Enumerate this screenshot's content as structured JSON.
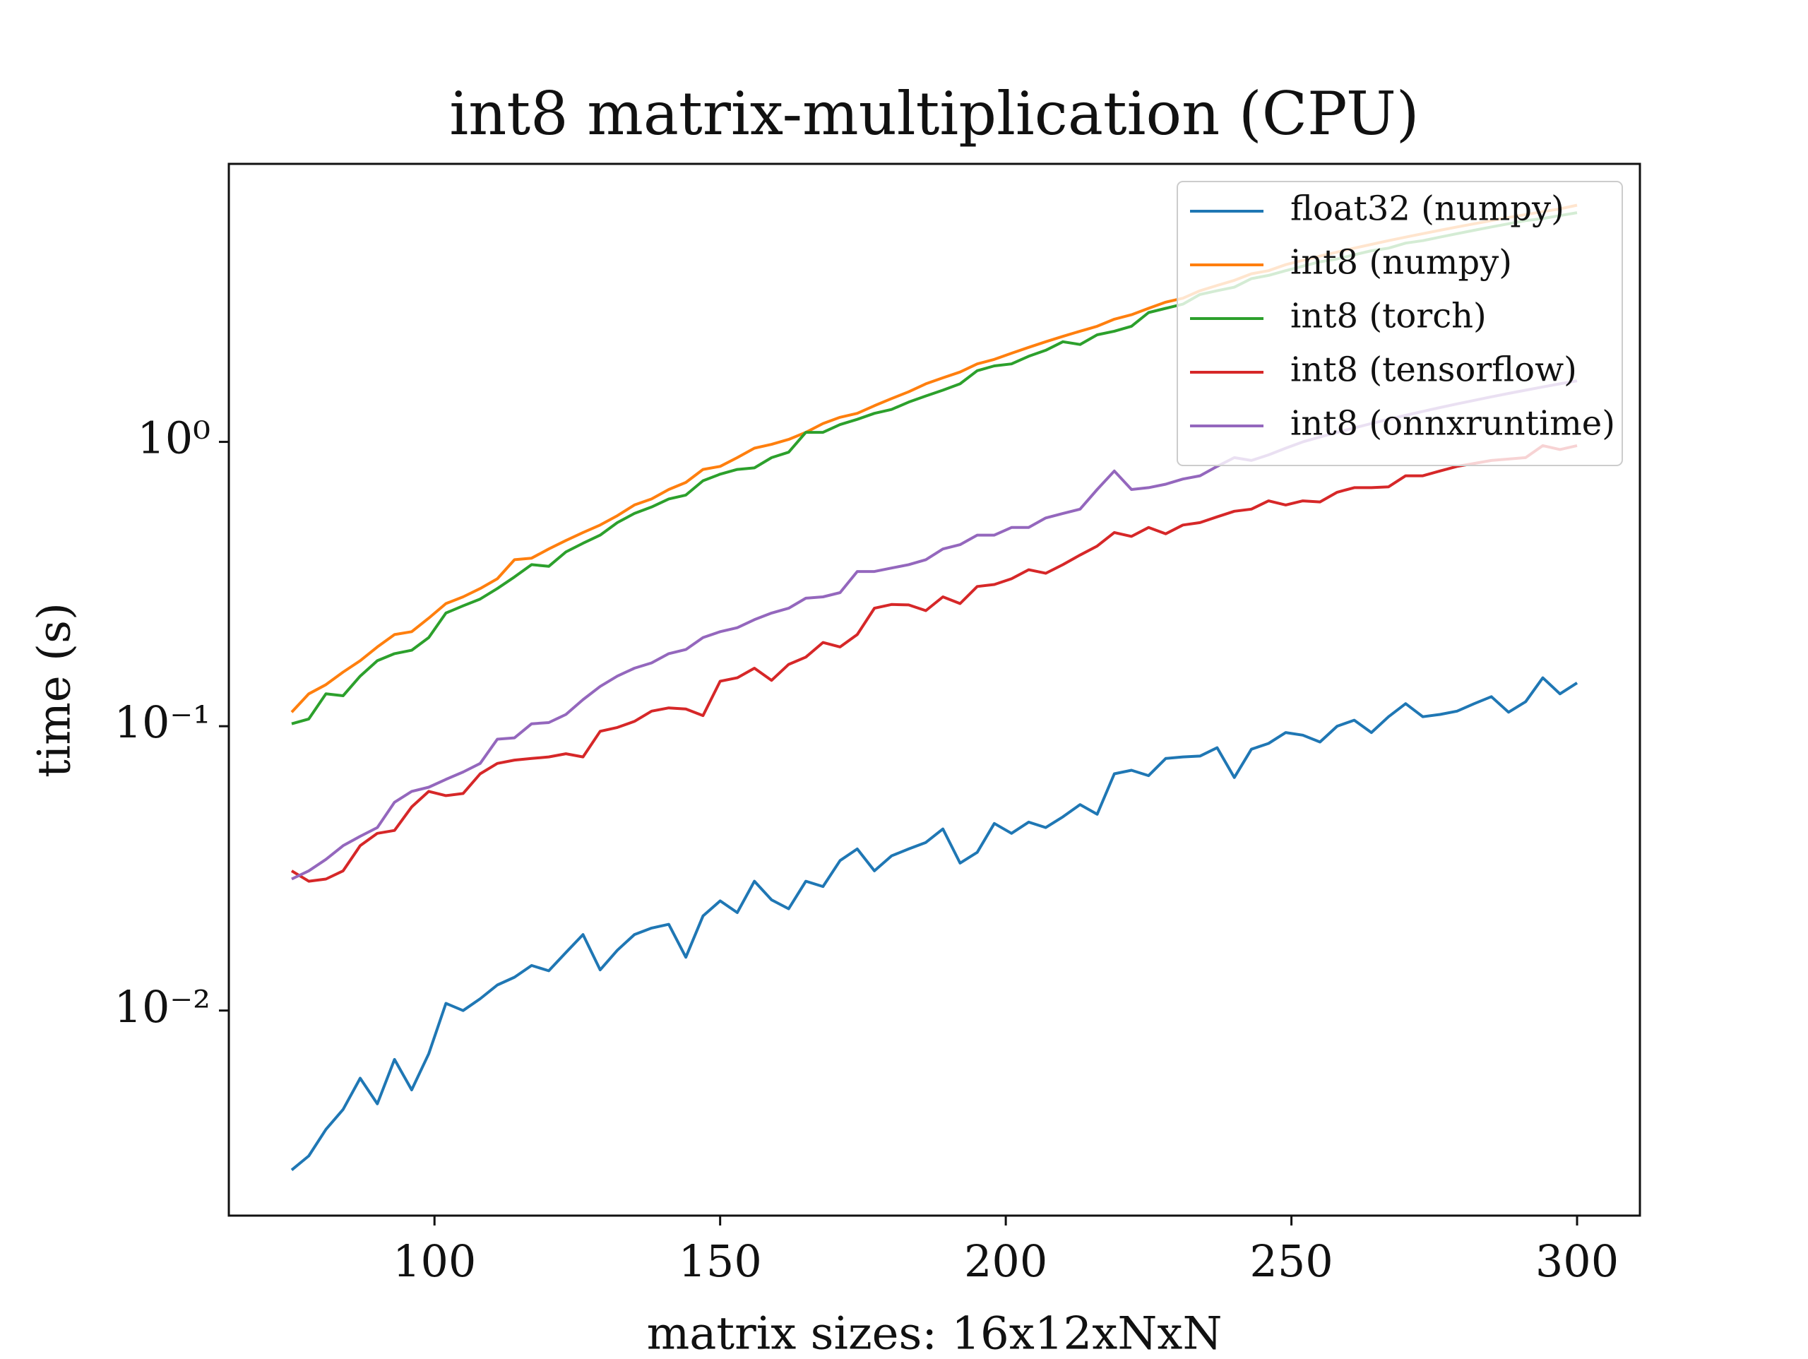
{
  "chart_data": {
    "type": "line",
    "title": "int8 matrix-multiplication (CPU)",
    "xlabel": "matrix sizes: 16x12xNxN",
    "ylabel": "time (s)",
    "yscale": "log",
    "legend": "upper right",
    "xlim": [
      64,
      311
    ],
    "ylim": [
      0.0019,
      9.5
    ],
    "xticks": [
      100,
      150,
      200,
      250,
      300
    ],
    "yticks": [
      {
        "value": 0.01,
        "label": "10⁻²"
      },
      {
        "value": 0.1,
        "label": "10⁻¹"
      },
      {
        "value": 1,
        "label": "10⁰"
      }
    ],
    "x": [
      75,
      78,
      81,
      84,
      87,
      90,
      93,
      96,
      99,
      102,
      105,
      108,
      111,
      114,
      117,
      120,
      123,
      126,
      129,
      132,
      135,
      138,
      141,
      144,
      147,
      150,
      153,
      156,
      159,
      162,
      165,
      168,
      171,
      174,
      177,
      180,
      183,
      186,
      189,
      192,
      195,
      198,
      201,
      204,
      207,
      210,
      213,
      216,
      219,
      222,
      225,
      228,
      231,
      234,
      237,
      240,
      243,
      246,
      249,
      252,
      255,
      258,
      261,
      264,
      267,
      270,
      273,
      276,
      279,
      282,
      285,
      288,
      291,
      294,
      297,
      300
    ],
    "series": [
      {
        "name": "float32 (numpy)",
        "color": "#1f77b4",
        "values": [
          0.00275,
          0.00308,
          0.00382,
          0.00449,
          0.00578,
          0.0047,
          0.00673,
          0.00526,
          0.00705,
          0.0106,
          0.01,
          0.011,
          0.0123,
          0.0131,
          0.0144,
          0.0138,
          0.016,
          0.0185,
          0.0139,
          0.0163,
          0.0185,
          0.0195,
          0.0201,
          0.0154,
          0.0215,
          0.0243,
          0.0221,
          0.0285,
          0.0245,
          0.0228,
          0.0285,
          0.0273,
          0.0337,
          0.037,
          0.031,
          0.035,
          0.037,
          0.039,
          0.0435,
          0.033,
          0.036,
          0.0455,
          0.042,
          0.046,
          0.044,
          0.048,
          0.053,
          0.049,
          0.068,
          0.07,
          0.067,
          0.077,
          0.078,
          0.0785,
          0.084,
          0.066,
          0.083,
          0.087,
          0.095,
          0.093,
          0.088,
          0.1,
          0.105,
          0.095,
          0.108,
          0.12,
          0.108,
          0.11,
          0.113,
          0.12,
          0.127,
          0.112,
          0.122,
          0.148,
          0.13,
          0.142
        ]
      },
      {
        "name": "int8 (numpy)",
        "color": "#ff7f0e",
        "values": [
          0.112,
          0.13,
          0.14,
          0.155,
          0.17,
          0.19,
          0.21,
          0.215,
          0.24,
          0.27,
          0.285,
          0.305,
          0.33,
          0.385,
          0.39,
          0.42,
          0.45,
          0.48,
          0.51,
          0.55,
          0.6,
          0.63,
          0.68,
          0.72,
          0.8,
          0.82,
          0.88,
          0.95,
          0.98,
          1.02,
          1.08,
          1.16,
          1.22,
          1.26,
          1.34,
          1.42,
          1.5,
          1.6,
          1.68,
          1.76,
          1.88,
          1.95,
          2.05,
          2.15,
          2.25,
          2.35,
          2.45,
          2.55,
          2.7,
          2.8,
          2.95,
          3.1,
          3.2,
          3.4,
          3.55,
          3.7,
          3.9,
          4.0,
          4.2,
          4.35,
          4.5,
          4.65,
          4.8,
          4.95,
          5.1,
          5.25,
          5.4,
          5.55,
          5.7,
          5.85,
          6.0,
          6.15,
          6.3,
          6.45,
          6.6,
          6.8
        ]
      },
      {
        "name": "int8 (torch)",
        "color": "#2ca02c",
        "values": [
          0.102,
          0.106,
          0.13,
          0.128,
          0.15,
          0.17,
          0.18,
          0.185,
          0.205,
          0.25,
          0.265,
          0.28,
          0.305,
          0.335,
          0.37,
          0.365,
          0.41,
          0.44,
          0.47,
          0.52,
          0.56,
          0.59,
          0.63,
          0.65,
          0.73,
          0.77,
          0.8,
          0.81,
          0.88,
          0.92,
          1.08,
          1.08,
          1.15,
          1.2,
          1.26,
          1.3,
          1.38,
          1.45,
          1.52,
          1.6,
          1.78,
          1.85,
          1.88,
          2.0,
          2.1,
          2.25,
          2.2,
          2.38,
          2.45,
          2.55,
          2.85,
          2.95,
          3.05,
          3.3,
          3.4,
          3.5,
          3.75,
          3.85,
          4.0,
          4.15,
          4.3,
          4.4,
          4.55,
          4.7,
          4.8,
          5.0,
          5.1,
          5.25,
          5.4,
          5.55,
          5.7,
          5.85,
          6.0,
          6.1,
          6.25,
          6.4
        ]
      },
      {
        "name": "int8 (tensorflow)",
        "color": "#d62728",
        "values": [
          0.031,
          0.0285,
          0.029,
          0.031,
          0.038,
          0.042,
          0.043,
          0.052,
          0.059,
          0.057,
          0.058,
          0.068,
          0.074,
          0.076,
          0.077,
          0.078,
          0.08,
          0.078,
          0.096,
          0.099,
          0.104,
          0.113,
          0.116,
          0.115,
          0.109,
          0.144,
          0.148,
          0.16,
          0.145,
          0.165,
          0.175,
          0.197,
          0.19,
          0.21,
          0.26,
          0.268,
          0.267,
          0.255,
          0.285,
          0.27,
          0.31,
          0.315,
          0.33,
          0.355,
          0.345,
          0.37,
          0.4,
          0.43,
          0.48,
          0.465,
          0.5,
          0.475,
          0.51,
          0.52,
          0.545,
          0.57,
          0.58,
          0.62,
          0.6,
          0.62,
          0.615,
          0.665,
          0.69,
          0.69,
          0.695,
          0.76,
          0.76,
          0.79,
          0.82,
          0.84,
          0.86,
          0.87,
          0.88,
          0.97,
          0.94,
          0.97
        ]
      },
      {
        "name": "int8 (onnxruntime)",
        "color": "#9467bd",
        "values": [
          0.029,
          0.031,
          0.034,
          0.038,
          0.041,
          0.044,
          0.054,
          0.059,
          0.061,
          0.065,
          0.069,
          0.074,
          0.09,
          0.091,
          0.102,
          0.103,
          0.11,
          0.124,
          0.138,
          0.15,
          0.16,
          0.167,
          0.18,
          0.186,
          0.205,
          0.215,
          0.222,
          0.237,
          0.25,
          0.26,
          0.282,
          0.285,
          0.295,
          0.35,
          0.35,
          0.36,
          0.37,
          0.385,
          0.42,
          0.435,
          0.47,
          0.47,
          0.5,
          0.5,
          0.54,
          0.56,
          0.58,
          0.68,
          0.79,
          0.68,
          0.69,
          0.71,
          0.74,
          0.76,
          0.82,
          0.88,
          0.86,
          0.9,
          0.95,
          1.0,
          1.04,
          1.08,
          1.12,
          1.16,
          1.2,
          1.24,
          1.28,
          1.32,
          1.36,
          1.4,
          1.44,
          1.48,
          1.52,
          1.56,
          1.6,
          1.64
        ]
      }
    ]
  }
}
